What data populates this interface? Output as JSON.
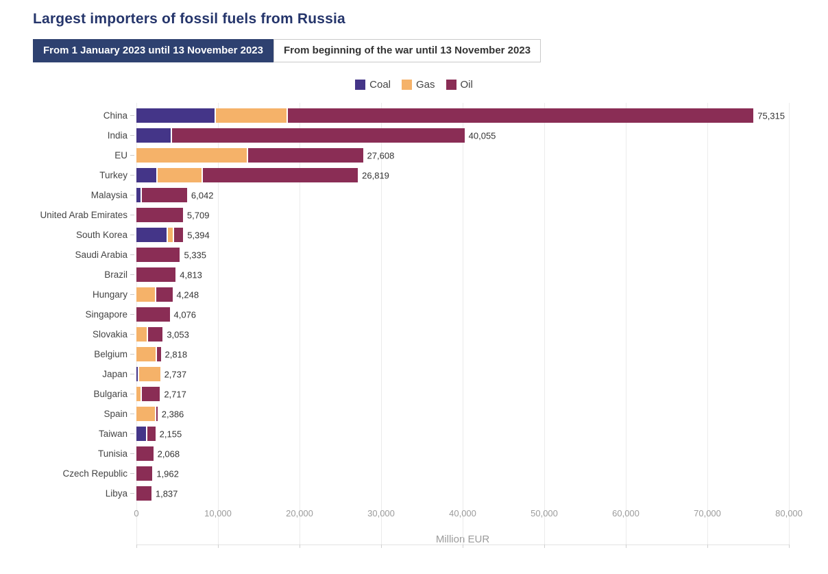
{
  "title": "Largest importers of fossil fuels from Russia",
  "tabs": [
    {
      "label": "From 1 January 2023 until 13 November 2023",
      "active": true
    },
    {
      "label": "From beginning of the war until 13 November 2023",
      "active": false
    }
  ],
  "legend": [
    {
      "name": "Coal",
      "color": "#443588"
    },
    {
      "name": "Gas",
      "color": "#f5b269"
    },
    {
      "name": "Oil",
      "color": "#8a2d55"
    }
  ],
  "chart_data": {
    "type": "bar",
    "orientation": "horizontal",
    "stacked": true,
    "title": "Largest importers of fossil fuels from Russia",
    "xlabel": "Million EUR",
    "ylabel": "",
    "xlim": [
      0,
      80000
    ],
    "grid": true,
    "legend_position": "top-center",
    "series_names": [
      "Coal",
      "Gas",
      "Oil"
    ],
    "x_ticks": [
      0,
      10000,
      20000,
      30000,
      40000,
      50000,
      60000,
      70000,
      80000
    ],
    "x_tick_labels": [
      "0",
      "10,000",
      "20,000",
      "30,000",
      "40,000",
      "50,000",
      "60,000",
      "70,000",
      "80,000"
    ],
    "categories": [
      "China",
      "India",
      "EU",
      "Turkey",
      "Malaysia",
      "United Arab Emirates",
      "South Korea",
      "Saudi Arabia",
      "Brazil",
      "Hungary",
      "Singapore",
      "Slovakia",
      "Belgium",
      "Japan",
      "Bulgaria",
      "Spain",
      "Taiwan",
      "Tunisia",
      "Czech Republic",
      "Libya"
    ],
    "rows": [
      {
        "country": "China",
        "coal": 9600,
        "gas": 8650,
        "oil": 57065,
        "total": 75315,
        "total_label": "75,315"
      },
      {
        "country": "India",
        "coal": 4170,
        "gas": 0,
        "oil": 35885,
        "total": 40055,
        "total_label": "40,055"
      },
      {
        "country": "EU",
        "coal": 0,
        "gas": 13530,
        "oil": 14078,
        "total": 27608,
        "total_label": "27,608"
      },
      {
        "country": "Turkey",
        "coal": 2400,
        "gas": 5450,
        "oil": 18969,
        "total": 26819,
        "total_label": "26,819"
      },
      {
        "country": "Malaysia",
        "coal": 500,
        "gas": 0,
        "oil": 5542,
        "total": 6042,
        "total_label": "6,042"
      },
      {
        "country": "United Arab Emirates",
        "coal": 0,
        "gas": 0,
        "oil": 5709,
        "total": 5709,
        "total_label": "5,709"
      },
      {
        "country": "South Korea",
        "coal": 3700,
        "gas": 550,
        "oil": 1144,
        "total": 5394,
        "total_label": "5,394"
      },
      {
        "country": "Saudi Arabia",
        "coal": 0,
        "gas": 0,
        "oil": 5335,
        "total": 5335,
        "total_label": "5,335"
      },
      {
        "country": "Brazil",
        "coal": 0,
        "gas": 0,
        "oil": 4813,
        "total": 4813,
        "total_label": "4,813"
      },
      {
        "country": "Hungary",
        "coal": 0,
        "gas": 2270,
        "oil": 1978,
        "total": 4248,
        "total_label": "4,248"
      },
      {
        "country": "Singapore",
        "coal": 0,
        "gas": 0,
        "oil": 4076,
        "total": 4076,
        "total_label": "4,076"
      },
      {
        "country": "Slovakia",
        "coal": 0,
        "gas": 1260,
        "oil": 1793,
        "total": 3053,
        "total_label": "3,053"
      },
      {
        "country": "Belgium",
        "coal": 0,
        "gas": 2390,
        "oil": 428,
        "total": 2818,
        "total_label": "2,818"
      },
      {
        "country": "Japan",
        "coal": 170,
        "gas": 2567,
        "oil": 0,
        "total": 2737,
        "total_label": "2,737"
      },
      {
        "country": "Bulgaria",
        "coal": 0,
        "gas": 500,
        "oil": 2217,
        "total": 2717,
        "total_label": "2,717"
      },
      {
        "country": "Spain",
        "coal": 0,
        "gas": 2290,
        "oil": 96,
        "total": 2386,
        "total_label": "2,386"
      },
      {
        "country": "Taiwan",
        "coal": 1150,
        "gas": 0,
        "oil": 1005,
        "total": 2155,
        "total_label": "2,155"
      },
      {
        "country": "Tunisia",
        "coal": 0,
        "gas": 0,
        "oil": 2068,
        "total": 2068,
        "total_label": "2,068"
      },
      {
        "country": "Czech Republic",
        "coal": 0,
        "gas": 0,
        "oil": 1962,
        "total": 1962,
        "total_label": "1,962"
      },
      {
        "country": "Libya",
        "coal": 0,
        "gas": 0,
        "oil": 1837,
        "total": 1837,
        "total_label": "1,837"
      }
    ]
  }
}
